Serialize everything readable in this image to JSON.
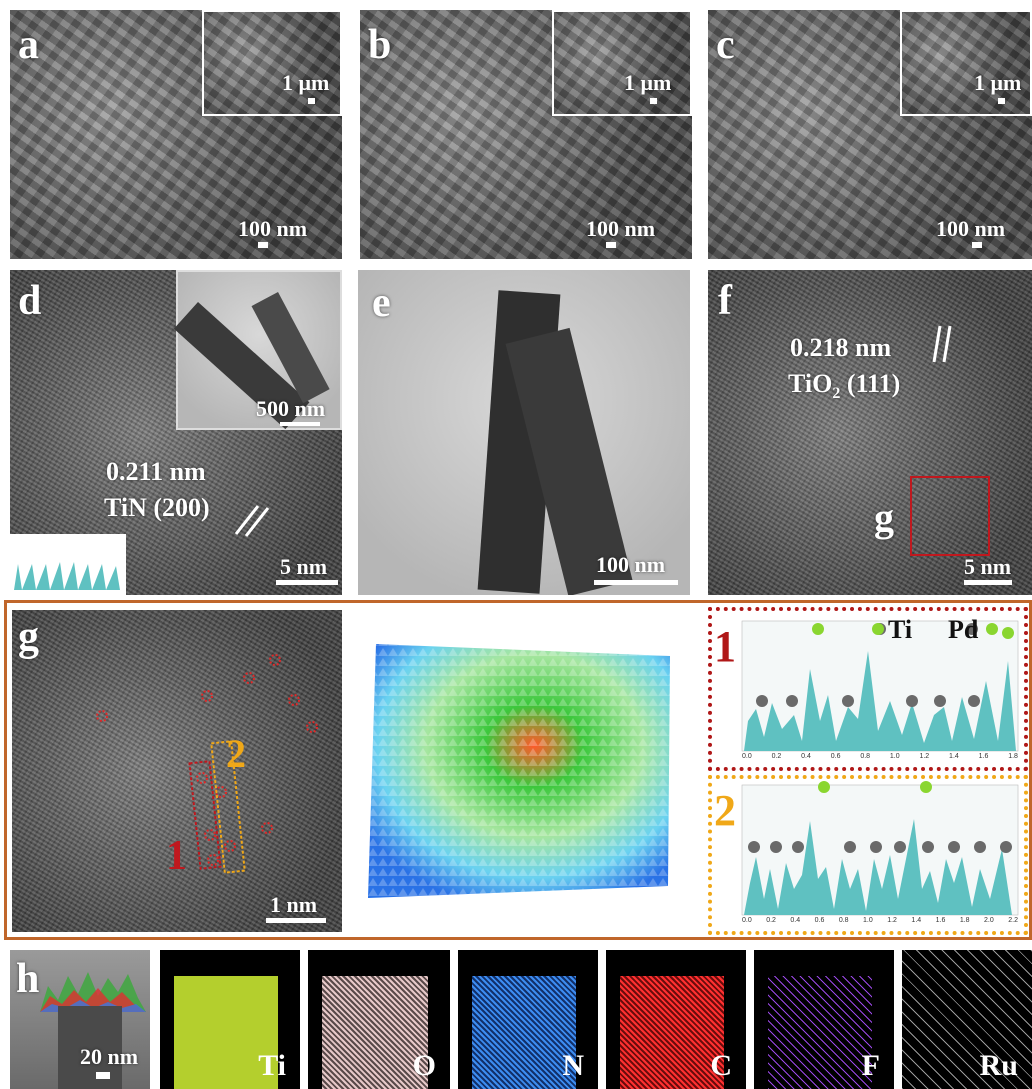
{
  "panels": {
    "a": {
      "letter": "a",
      "inset_scale": "1 μm",
      "scale": "100 nm"
    },
    "b": {
      "letter": "b",
      "inset_scale": "1 μm",
      "scale": "100 nm"
    },
    "c": {
      "letter": "c",
      "inset_scale": "1 μm",
      "scale": "100 nm"
    },
    "d": {
      "letter": "d",
      "inset_scale": "500 nm",
      "spacing": "0.211 nm",
      "plane": "TiN (200)",
      "scale": "5 nm"
    },
    "e": {
      "letter": "e",
      "scale": "100 nm"
    },
    "f": {
      "letter": "f",
      "spacing": "0.218 nm",
      "plane_main": "TiO",
      "plane_sub": "2",
      "plane_rest": " (111)",
      "box_label": "g",
      "scale": "5 nm"
    },
    "g": {
      "letter": "g",
      "label1": "1",
      "label2": "2",
      "scale": "1 nm"
    },
    "h": {
      "letter": "h",
      "scale": "20 nm"
    }
  },
  "profile_legend": {
    "ti": "Ti",
    "pd": "Pd"
  },
  "profile_numbers": {
    "one": "1",
    "two": "2"
  },
  "profile1_axis": [
    "0.0",
    "0.2",
    "0.4",
    "0.6",
    "0.8",
    "1.0",
    "1.2",
    "1.4",
    "1.6",
    "1.8"
  ],
  "profile2_axis": [
    "0.0",
    "0.2",
    "0.4",
    "0.6",
    "0.8",
    "1.0",
    "1.2",
    "1.4",
    "1.6",
    "1.8",
    "2.0",
    "2.2"
  ],
  "elements": [
    "Ti",
    "O",
    "N",
    "C",
    "F",
    "Ru"
  ],
  "colors": {
    "frame": "#c0662a",
    "red_box": "#c0181e",
    "orange_box": "#f0a818",
    "profile": "#5fc1c1",
    "ti_map": "#c8e632",
    "o_map": "#e6c8c8",
    "n_map": "#3c8cf0",
    "c_map": "#ff3030",
    "f_map": "#9a48e6",
    "ru_map": "#dcdcdc"
  }
}
